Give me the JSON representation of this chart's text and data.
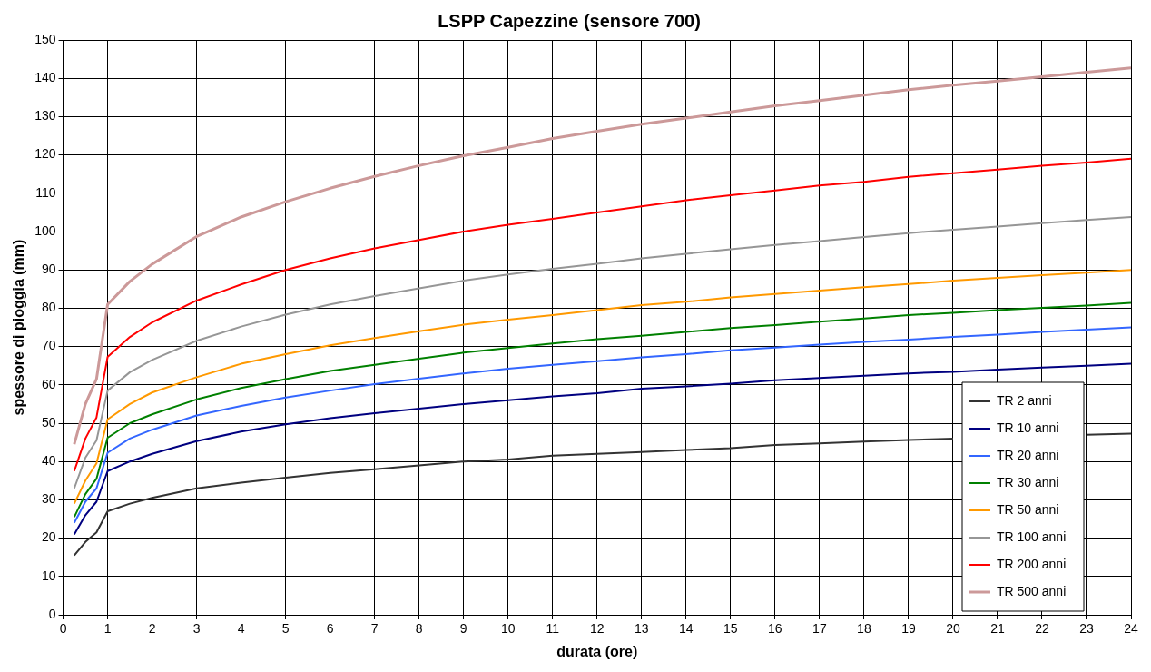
{
  "chart_data": {
    "type": "line",
    "title": "LSPP Capezzine (sensore 700)",
    "xlabel": "durata (ore)",
    "ylabel": "spessore di pioggia (mm)",
    "x": [
      0.25,
      0.5,
      0.75,
      1,
      1.5,
      2,
      3,
      4,
      5,
      6,
      7,
      8,
      9,
      10,
      11,
      12,
      13,
      14,
      15,
      16,
      17,
      18,
      19,
      20,
      21,
      22,
      23,
      24
    ],
    "xlim": [
      0,
      24
    ],
    "xticks": [
      0,
      1,
      2,
      3,
      4,
      5,
      6,
      7,
      8,
      9,
      10,
      11,
      12,
      13,
      14,
      15,
      16,
      17,
      18,
      19,
      20,
      21,
      22,
      23,
      24
    ],
    "ylim": [
      0,
      150
    ],
    "yticks": [
      0,
      10,
      20,
      30,
      40,
      50,
      60,
      70,
      80,
      90,
      100,
      110,
      120,
      130,
      140,
      150
    ],
    "grid": true,
    "legend": "bottom right",
    "marker": "none",
    "line_style": "solid",
    "series": [
      {
        "name": "TR 2 anni",
        "color": "#333333",
        "values": [
          15.5,
          19,
          21.5,
          27,
          29,
          30.5,
          33,
          34.5,
          35.8,
          37,
          38,
          39,
          40,
          40.5,
          41.5,
          42,
          42.5,
          43,
          43.5,
          44.3,
          44.7,
          45.2,
          45.6,
          46,
          null,
          null,
          47,
          47.3
        ]
      },
      {
        "name": "TR 10 anni",
        "color": "#000080",
        "values": [
          21,
          26,
          29.5,
          37.5,
          40,
          42,
          45.3,
          47.8,
          49.7,
          51.3,
          52.6,
          53.8,
          55,
          56,
          57,
          57.8,
          59,
          59.6,
          60.3,
          61.2,
          61.8,
          62.4,
          63,
          63.4,
          64,
          64.5,
          65,
          65.5
        ]
      },
      {
        "name": "TR 20 anni",
        "color": "#3366ff",
        "values": [
          24,
          29.5,
          33,
          42.3,
          46,
          48.3,
          52,
          54.5,
          56.7,
          58.5,
          60.2,
          61.6,
          63,
          64.2,
          65.2,
          66.2,
          67.2,
          68,
          69,
          69.7,
          70.5,
          71.2,
          71.8,
          72.5,
          73.1,
          73.8,
          74.4,
          75
        ]
      },
      {
        "name": "TR 30 anni",
        "color": "#008000",
        "values": [
          25.5,
          31.5,
          35.5,
          46.2,
          50,
          52.3,
          56.2,
          59.2,
          61.5,
          63.6,
          65.2,
          66.8,
          68.4,
          69.6,
          70.8,
          71.9,
          72.8,
          73.8,
          74.8,
          75.6,
          76.5,
          77.3,
          78.2,
          78.8,
          79.5,
          80.1,
          80.7,
          81.4
        ]
      },
      {
        "name": "TR 50 anni",
        "color": "#ff9900",
        "values": [
          29,
          35,
          39.5,
          51,
          55,
          58,
          62,
          65.5,
          68,
          70.3,
          72.2,
          74,
          75.7,
          77,
          78.2,
          79.5,
          80.8,
          81.7,
          82.8,
          83.7,
          84.6,
          85.5,
          86.3,
          87.2,
          87.9,
          88.6,
          89.3,
          90
        ]
      },
      {
        "name": "TR 100 anni",
        "color": "#969696",
        "values": [
          33,
          41,
          45.5,
          58.5,
          63.3,
          66.5,
          71.5,
          75.2,
          78.3,
          81,
          83.2,
          85.2,
          87.2,
          88.8,
          90.3,
          91.6,
          93,
          94.2,
          95.4,
          96.5,
          97.5,
          98.6,
          99.6,
          100.5,
          101.3,
          102.2,
          103,
          103.8
        ]
      },
      {
        "name": "TR 200 anni",
        "color": "#ff0000",
        "values": [
          37.5,
          46,
          51.5,
          67.3,
          72.5,
          76.3,
          82,
          86.2,
          90,
          93,
          95.6,
          97.8,
          100,
          101.8,
          103.3,
          105,
          106.6,
          108.2,
          109.5,
          110.7,
          112,
          113,
          114.3,
          115.2,
          116.2,
          117.2,
          118,
          119
        ]
      },
      {
        "name": "TR 500 anni",
        "color": "#cc9999",
        "values": [
          44.5,
          55,
          61.5,
          81,
          87,
          91.5,
          98.7,
          103.8,
          107.8,
          111.3,
          114.4,
          117.2,
          119.8,
          122,
          124.3,
          126.2,
          128,
          129.6,
          131.2,
          132.8,
          134.2,
          135.6,
          137,
          138.2,
          139.3,
          140.4,
          141.6,
          142.7
        ]
      }
    ]
  }
}
